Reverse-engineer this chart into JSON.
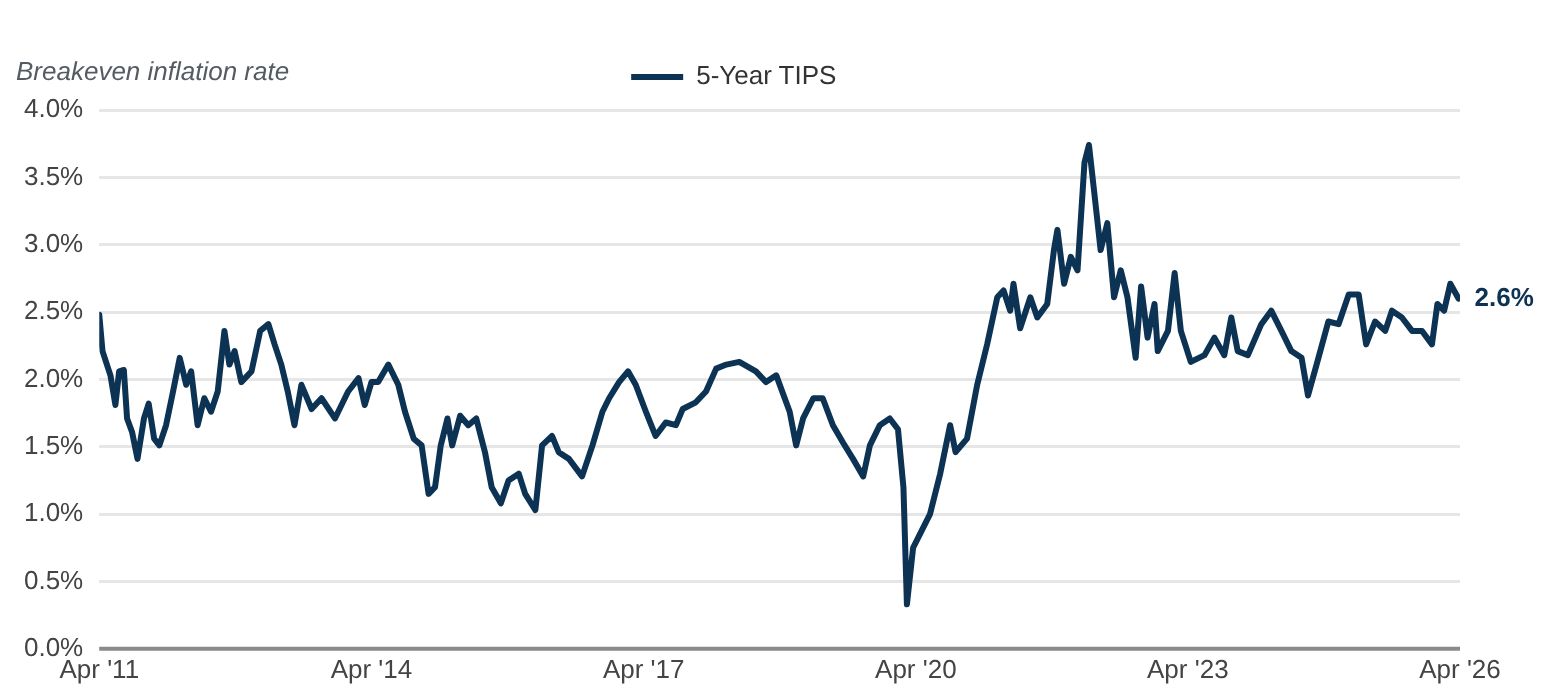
{
  "chart_data": {
    "type": "line",
    "ylabel": "Breakeven inflation rate",
    "xlim": [
      "2011-04-01",
      "2026-04-01"
    ],
    "xticks": [
      {
        "value": "2011-04-01",
        "label": "Apr '11"
      },
      {
        "value": "2014-04-01",
        "label": "Apr '14"
      },
      {
        "value": "2017-04-01",
        "label": "Apr '17"
      },
      {
        "value": "2020-04-01",
        "label": "Apr '20"
      },
      {
        "value": "2023-04-01",
        "label": "Apr '23"
      },
      {
        "value": "2026-04-01",
        "label": "Apr '26"
      }
    ],
    "ylim": [
      0,
      4
    ],
    "yticks": [
      {
        "value": 0,
        "label": "0.0%"
      },
      {
        "value": 0.5,
        "label": "0.5%"
      },
      {
        "value": 1,
        "label": "1.0%"
      },
      {
        "value": 1.5,
        "label": "1.5%"
      },
      {
        "value": 2,
        "label": "2.0%"
      },
      {
        "value": 2.5,
        "label": "2.5%"
      },
      {
        "value": 3,
        "label": "3.0%"
      },
      {
        "value": 3.5,
        "label": "3.5%"
      },
      {
        "value": 4,
        "label": "4.0%"
      }
    ],
    "grid": "y",
    "legend": "top",
    "marker": "none",
    "line_style": "solid",
    "annotations": [
      {
        "text": "2.6%",
        "x": "2026-03-26",
        "y": 2.6
      }
    ],
    "x": [
      "2011-04-01",
      "2011-04-14",
      "2011-05-16",
      "2011-06-05",
      "2011-06-20",
      "2011-07-09",
      "2011-07-22",
      "2011-08-11",
      "2011-09-02",
      "2011-09-28",
      "2011-10-17",
      "2011-11-08",
      "2011-11-29",
      "2011-12-26",
      "2012-01-23",
      "2012-02-19",
      "2012-03-16",
      "2012-04-05",
      "2012-05-01",
      "2012-05-28",
      "2012-06-24",
      "2012-07-21",
      "2012-08-17",
      "2012-09-06",
      "2012-09-27",
      "2012-10-24",
      "2012-12-04",
      "2013-01-08",
      "2013-02-10",
      "2013-03-07",
      "2013-04-03",
      "2013-04-29",
      "2013-05-26",
      "2013-06-23",
      "2013-08-03",
      "2013-09-12",
      "2013-11-05",
      "2013-12-28",
      "2014-02-08",
      "2014-03-05",
      "2014-04-01",
      "2014-04-28",
      "2014-06-08",
      "2014-07-18",
      "2014-08-14",
      "2014-09-18",
      "2014-10-20",
      "2014-11-17",
      "2014-12-13",
      "2015-01-05",
      "2015-02-01",
      "2015-02-20",
      "2015-03-24",
      "2015-04-26",
      "2015-05-28",
      "2015-07-02",
      "2015-07-29",
      "2015-09-04",
      "2015-10-05",
      "2015-11-15",
      "2015-12-11",
      "2016-01-21",
      "2016-02-17",
      "2016-03-28",
      "2016-04-24",
      "2016-06-04",
      "2016-07-27",
      "2016-09-07",
      "2016-10-17",
      "2016-11-13",
      "2016-12-23",
      "2017-01-28",
      "2017-02-28",
      "2017-04-10",
      "2017-05-19",
      "2017-06-29",
      "2017-08-09",
      "2017-09-05",
      "2017-10-28",
      "2017-12-08",
      "2018-01-18",
      "2018-02-28",
      "2018-04-21",
      "2018-06-27",
      "2018-08-07",
      "2018-09-17",
      "2018-11-10",
      "2018-12-06",
      "2019-01-03",
      "2019-02-13",
      "2019-03-23",
      "2019-05-03",
      "2019-06-13",
      "2019-07-23",
      "2019-09-02",
      "2019-09-29",
      "2019-11-08",
      "2019-12-18",
      "2020-01-20",
      "2020-02-11",
      "2020-02-25",
      "2020-03-21",
      "2020-04-17",
      "2020-05-28",
      "2020-07-08",
      "2020-08-17",
      "2020-09-08",
      "2020-10-24",
      "2020-12-04",
      "2021-01-13",
      "2021-02-23",
      "2021-03-20",
      "2021-04-16",
      "2021-04-29",
      "2021-05-26",
      "2021-07-06",
      "2021-08-03",
      "2021-09-12",
      "2021-10-09",
      "2021-10-23",
      "2021-11-19",
      "2021-12-16",
      "2022-01-12",
      "2022-02-09",
      "2022-02-27",
      "2022-03-19",
      "2022-04-15",
      "2022-05-12",
      "2022-06-08",
      "2022-07-05",
      "2022-08-01",
      "2022-09-03",
      "2022-09-25",
      "2022-10-21",
      "2022-11-18",
      "2022-12-01",
      "2023-01-11",
      "2023-02-07",
      "2023-03-04",
      "2023-04-13",
      "2023-06-07",
      "2023-07-17",
      "2023-08-26",
      "2023-09-23",
      "2023-10-19",
      "2023-11-29",
      "2024-01-22",
      "2024-03-02",
      "2024-04-12",
      "2024-05-22",
      "2024-07-02",
      "2024-07-28",
      "2024-09-08",
      "2024-10-18",
      "2024-11-28",
      "2025-01-08",
      "2025-02-17",
      "2025-03-19",
      "2025-04-24",
      "2025-06-04",
      "2025-07-01",
      "2025-08-10",
      "2025-09-20",
      "2025-10-30",
      "2025-12-09",
      "2025-12-31",
      "2026-01-27",
      "2026-02-21",
      "2026-03-26"
    ],
    "series": [
      {
        "name": "5-Year TIPS",
        "color": "#0d3354",
        "values": [
          2.48,
          2.21,
          2.03,
          1.81,
          2.06,
          2.07,
          1.71,
          1.61,
          1.41,
          1.71,
          1.82,
          1.56,
          1.51,
          1.66,
          1.91,
          2.16,
          1.96,
          2.06,
          1.66,
          1.86,
          1.76,
          1.91,
          2.36,
          2.11,
          2.21,
          1.98,
          2.06,
          2.36,
          2.41,
          2.26,
          2.11,
          1.91,
          1.66,
          1.96,
          1.78,
          1.86,
          1.71,
          1.91,
          2.01,
          1.81,
          1.98,
          1.98,
          2.11,
          1.96,
          1.76,
          1.56,
          1.51,
          1.15,
          1.2,
          1.51,
          1.71,
          1.51,
          1.73,
          1.66,
          1.71,
          1.46,
          1.2,
          1.08,
          1.25,
          1.3,
          1.15,
          1.03,
          1.51,
          1.58,
          1.46,
          1.41,
          1.28,
          1.51,
          1.76,
          1.86,
          1.98,
          2.06,
          1.96,
          1.76,
          1.58,
          1.68,
          1.66,
          1.78,
          1.83,
          1.91,
          2.08,
          2.11,
          2.13,
          2.06,
          1.98,
          2.03,
          1.76,
          1.51,
          1.71,
          1.86,
          1.86,
          1.66,
          1.53,
          1.41,
          1.28,
          1.51,
          1.66,
          1.71,
          1.63,
          1.2,
          0.33,
          0.75,
          0.85,
          1.0,
          1.3,
          1.66,
          1.46,
          1.56,
          1.96,
          2.26,
          2.61,
          2.66,
          2.51,
          2.71,
          2.38,
          2.61,
          2.46,
          2.56,
          2.96,
          3.11,
          2.71,
          2.91,
          2.81,
          3.61,
          3.74,
          3.41,
          2.96,
          3.16,
          2.61,
          2.81,
          2.61,
          2.16,
          2.69,
          2.31,
          2.56,
          2.21,
          2.36,
          2.79,
          2.36,
          2.13,
          2.18,
          2.31,
          2.18,
          2.46,
          2.21,
          2.18,
          2.41,
          2.51,
          2.36,
          2.21,
          2.16,
          1.88,
          2.16,
          2.43,
          2.41,
          2.63,
          2.63,
          2.26,
          2.43,
          2.36,
          2.51,
          2.46,
          2.36,
          2.36,
          2.26,
          2.56,
          2.51,
          2.71,
          2.6
        ]
      }
    ]
  }
}
